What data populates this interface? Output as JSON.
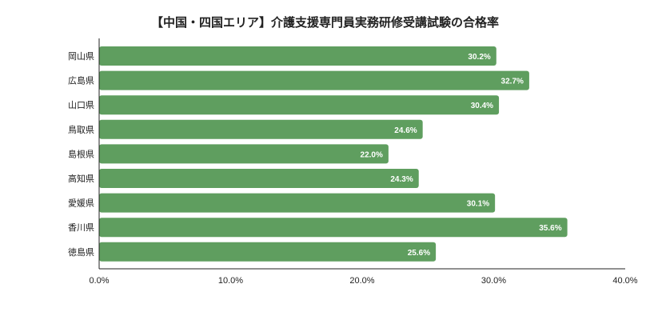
{
  "chart_data": {
    "type": "bar",
    "orientation": "horizontal",
    "title": "【中国・四国エリア】介護支援専門員実務研修受講試験の合格率",
    "categories": [
      "岡山県",
      "広島県",
      "山口県",
      "鳥取県",
      "島根県",
      "高知県",
      "愛媛県",
      "香川県",
      "徳島県"
    ],
    "values": [
      30.2,
      32.7,
      30.4,
      24.6,
      22.0,
      24.3,
      30.1,
      35.6,
      25.6
    ],
    "value_labels": [
      "30.2%",
      "32.7%",
      "30.4%",
      "24.6%",
      "22.0%",
      "24.3%",
      "30.1%",
      "35.6%",
      "25.6%"
    ],
    "xlim": [
      0,
      40
    ],
    "x_ticks": [
      0,
      10,
      20,
      30,
      40
    ],
    "x_tick_labels": [
      "0.0%",
      "10.0%",
      "20.0%",
      "30.0%",
      "40.0%"
    ],
    "xlabel": "",
    "ylabel": "",
    "grid": false,
    "legend": "none",
    "bar_color": "#5f9e5f"
  }
}
